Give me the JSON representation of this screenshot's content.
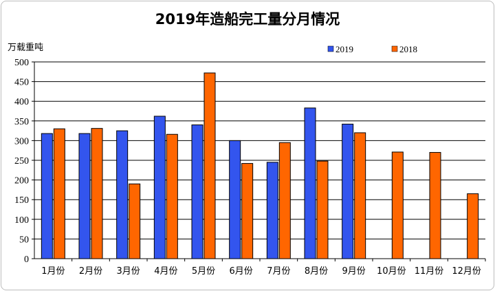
{
  "chart_data": {
    "type": "bar",
    "title": "2019年造船完工量分月情况",
    "ylabel": "万载重吨",
    "xlabel": "",
    "ylim": [
      0,
      500
    ],
    "yticks": [
      0,
      50,
      100,
      150,
      200,
      250,
      300,
      350,
      400,
      450,
      500
    ],
    "grid": true,
    "legend_position": "top-right",
    "categories": [
      "1月份",
      "2月份",
      "3月份",
      "4月份",
      "5月份",
      "6月份",
      "7月份",
      "8月份",
      "9月份",
      "10月份",
      "11月份",
      "12月份"
    ],
    "series": [
      {
        "name": "2019",
        "color": "#3355ee",
        "values": [
          318,
          318,
          325,
          362,
          340,
          300,
          245,
          383,
          342,
          null,
          null,
          null
        ]
      },
      {
        "name": "2018",
        "color": "#ff6600",
        "values": [
          330,
          331,
          190,
          316,
          472,
          242,
          295,
          248,
          320,
          271,
          270,
          165
        ]
      }
    ]
  }
}
